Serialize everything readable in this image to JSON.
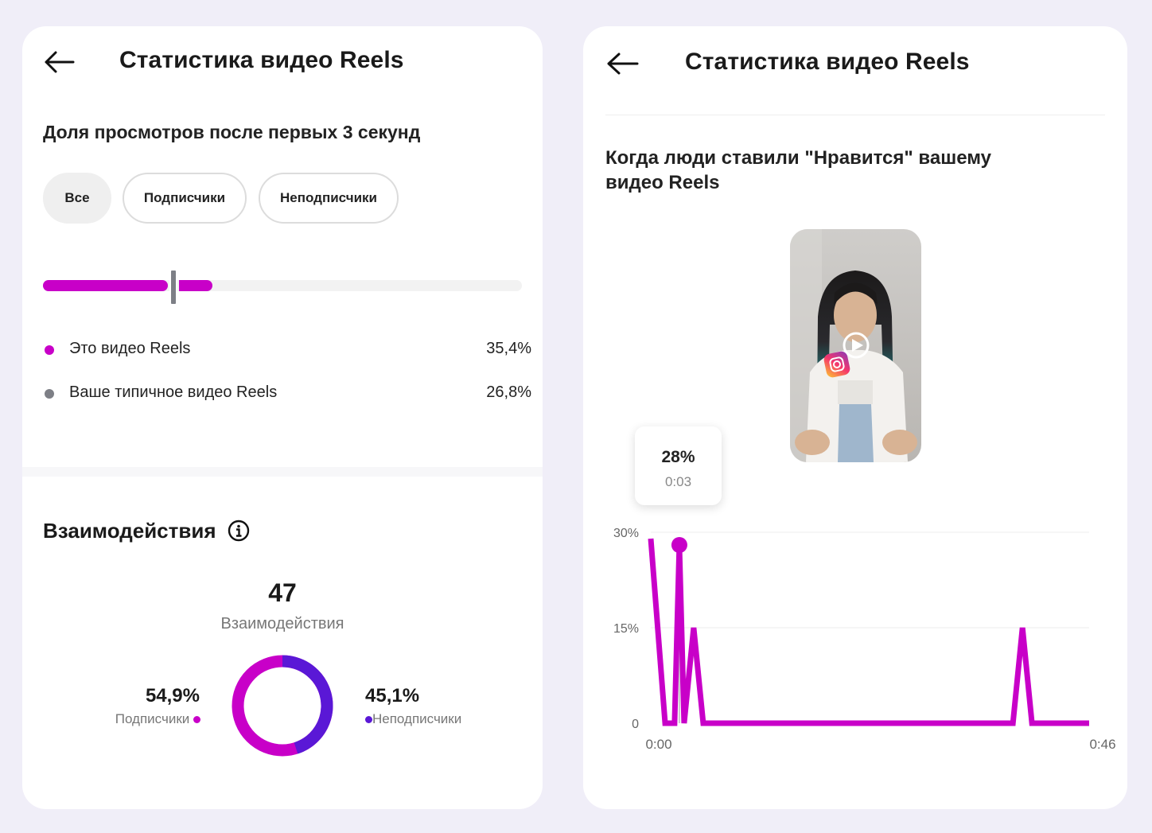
{
  "left_panel": {
    "title": "Статистика видео Reels",
    "retention_section": {
      "heading": "Доля просмотров после первых 3 секунд",
      "filters": [
        "Все",
        "Подписчики",
        "Неподписчики"
      ],
      "active_filter": "Все",
      "bar_fill_fraction": 0.354,
      "typical_marker_fraction": 0.268,
      "legend": [
        {
          "label": "Это видео Reels",
          "value": "35,4%",
          "color": "#c800c8"
        },
        {
          "label": "Ваше типичное видео Reels",
          "value": "26,8%",
          "color": "#7d7f86"
        }
      ]
    },
    "interactions": {
      "heading": "Взаимодействия",
      "total": "47",
      "total_label": "Взаимодействия",
      "followers": {
        "percent": "54,9%",
        "label": "Подписчики",
        "fraction": 0.549,
        "color": "#c800c8"
      },
      "non_followers": {
        "percent": "45,1%",
        "label": "Неподписчики",
        "fraction": 0.451,
        "color": "#5a18d6"
      }
    }
  },
  "right_panel": {
    "title": "Статистика видео Reels",
    "likes_section": {
      "heading": "Когда люди ставили \"Нравится\" вашему видео Reels"
    },
    "tooltip": {
      "value": "28%",
      "time": "0:03"
    }
  },
  "chart_data": {
    "type": "line",
    "title": "",
    "xlabel": "",
    "ylabel": "",
    "x_tick_labels": [
      "0:00",
      "0:46"
    ],
    "y_tick_labels": [
      "0",
      "15%",
      "30%"
    ],
    "xlim": [
      0,
      46
    ],
    "ylim": [
      0,
      30
    ],
    "grid": true,
    "color": "#c800c8",
    "highlight": {
      "x": 3,
      "y": 28
    },
    "series": [
      {
        "x": [
          0,
          1.5,
          2.5,
          3,
          3.5,
          4.5,
          5.5,
          38,
          39,
          40,
          46
        ],
        "y": [
          29,
          0,
          0,
          28,
          0,
          15,
          0,
          0,
          15,
          0,
          0
        ]
      }
    ]
  }
}
